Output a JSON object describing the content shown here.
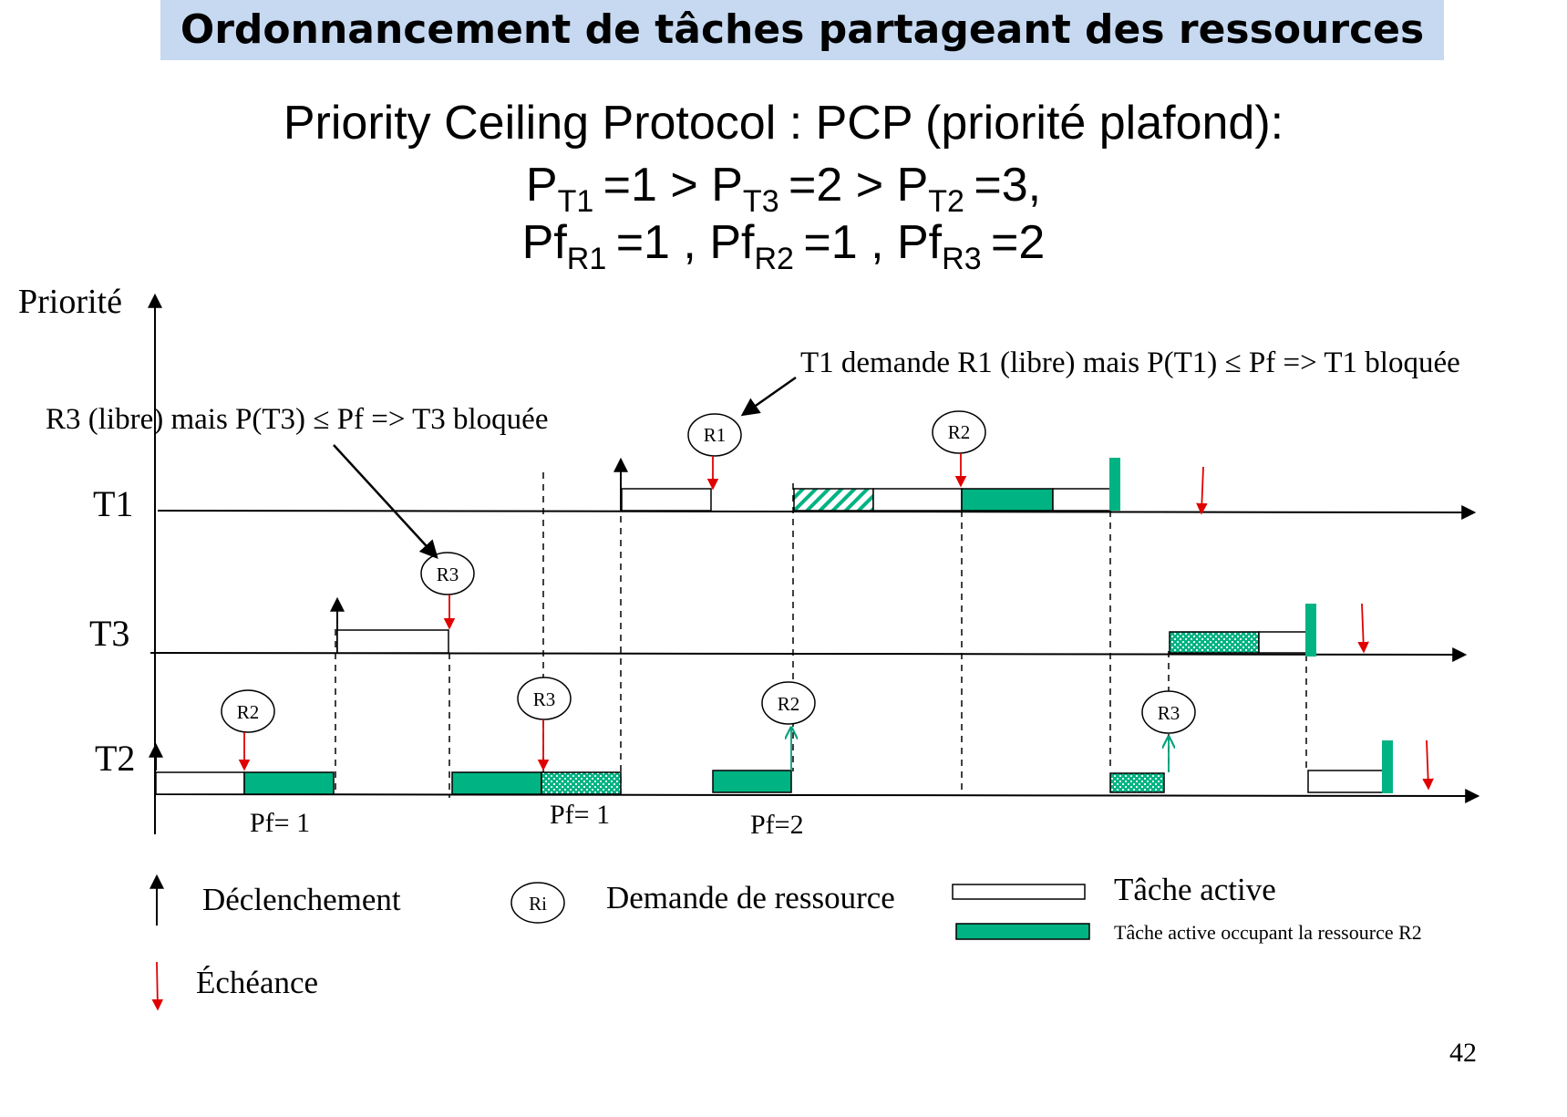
{
  "header": {
    "title": "Ordonnancement de tâches partageant des ressources"
  },
  "subtitle": {
    "line1": "Priority Ceiling Protocol : PCP (priorité plafond):",
    "line2": [
      {
        "base": "P",
        "sub": "T1",
        "val": "=1 > "
      },
      {
        "base": "P",
        "sub": "T3",
        "val": "=2 > "
      },
      {
        "base": "P",
        "sub": "T2",
        "val": "=3,"
      }
    ],
    "line3": [
      {
        "base": "Pf",
        "sub": "R1",
        "val": "=1 , "
      },
      {
        "base": "Pf",
        "sub": "R2",
        "val": "=1 , "
      },
      {
        "base": "Pf",
        "sub": "R3",
        "val": "=2"
      }
    ]
  },
  "diagram": {
    "y_axis_label": "Priorité",
    "task_labels": {
      "t1": "T1",
      "t3": "T3",
      "t2": "T2"
    },
    "annotations": {
      "t1_blocked": "T1 demande R1 (libre) mais P(T1) ≤ Pf => T1 bloquée",
      "t3_blocked": "R3 (libre) mais P(T3) ≤ Pf => T3 bloquée"
    },
    "resource_circles": {
      "t1_r1": "R1",
      "t1_r2": "R2",
      "t3_r3": "R3",
      "t2_r2_first": "R2",
      "t2_r3_first": "R3",
      "t2_r2_second": "R2",
      "t2_r3_second": "R3"
    },
    "pf_labels": {
      "first": "Pf= 1",
      "second": "Pf= 1",
      "third": "Pf=2"
    },
    "colors": {
      "r2_fill": "#00b383",
      "deadline": "#e00000",
      "request_arrow": "#00a07a"
    }
  },
  "legend": {
    "trigger": "Déclenchement",
    "resource_symbol": "Ri",
    "resource_request": "Demande de ressource",
    "active_task": "Tâche active",
    "active_task_r2": "Tâche active occupant la ressource R2",
    "deadline": "Échéance"
  },
  "page_number": "42"
}
